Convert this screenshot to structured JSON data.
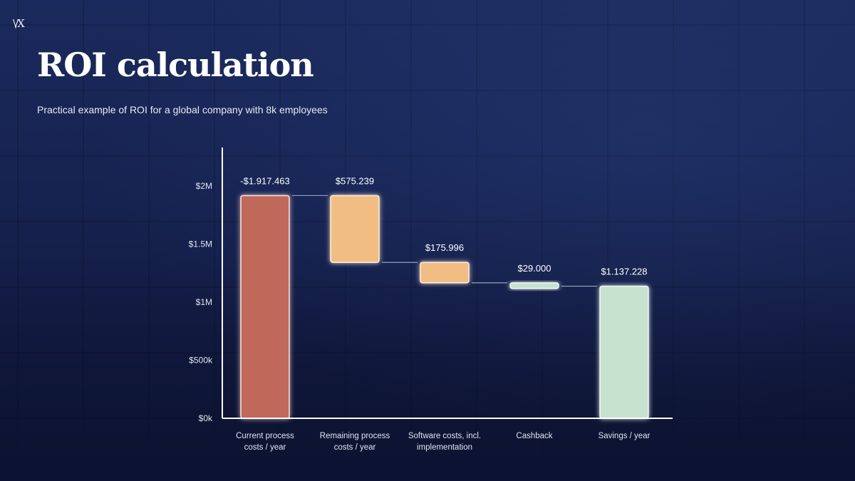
{
  "header": {
    "title": "ROI calculation",
    "subtitle": "Practical example of ROI for a global company with 8k employees"
  },
  "colors": {
    "current": "#c0675a",
    "remaining": "#f2bd82",
    "software": "#f2bd82",
    "cashback": "#c7e2cf",
    "savings": "#c7e2cf",
    "axis": "#ffffff",
    "connector": "#8fa0bf"
  },
  "chart_data": {
    "type": "bar",
    "subtype": "waterfall",
    "title": "",
    "xlabel": "",
    "ylabel": "",
    "ylim": [
      0,
      2300000
    ],
    "y_ticks": [
      {
        "value": 0,
        "label": "$0k"
      },
      {
        "value": 500000,
        "label": "$500k"
      },
      {
        "value": 1000000,
        "label": "$1M"
      },
      {
        "value": 1500000,
        "label": "$1.5M"
      },
      {
        "value": 2000000,
        "label": "$2M"
      }
    ],
    "bars": [
      {
        "category": [
          "Current process",
          "costs / year"
        ],
        "label": "-$1.917.463",
        "start": 0,
        "end": 1917463,
        "color_key": "current"
      },
      {
        "category": [
          "Remaining process",
          "costs / year"
        ],
        "label": "$575.239",
        "start": 1917463,
        "end": 1342224,
        "color_key": "remaining"
      },
      {
        "category": [
          "Software costs, incl.",
          "implementation"
        ],
        "label": "$175.996",
        "start": 1342224,
        "end": 1166228,
        "color_key": "software"
      },
      {
        "category": [
          "Cashback"
        ],
        "label": "$29.000",
        "start": 1166228,
        "end": 1137228,
        "color_key": "cashback"
      },
      {
        "category": [
          "Savings / year"
        ],
        "label": "$1.137.228",
        "start": 0,
        "end": 1137228,
        "color_key": "savings"
      }
    ],
    "grid": false,
    "legend": "none"
  }
}
